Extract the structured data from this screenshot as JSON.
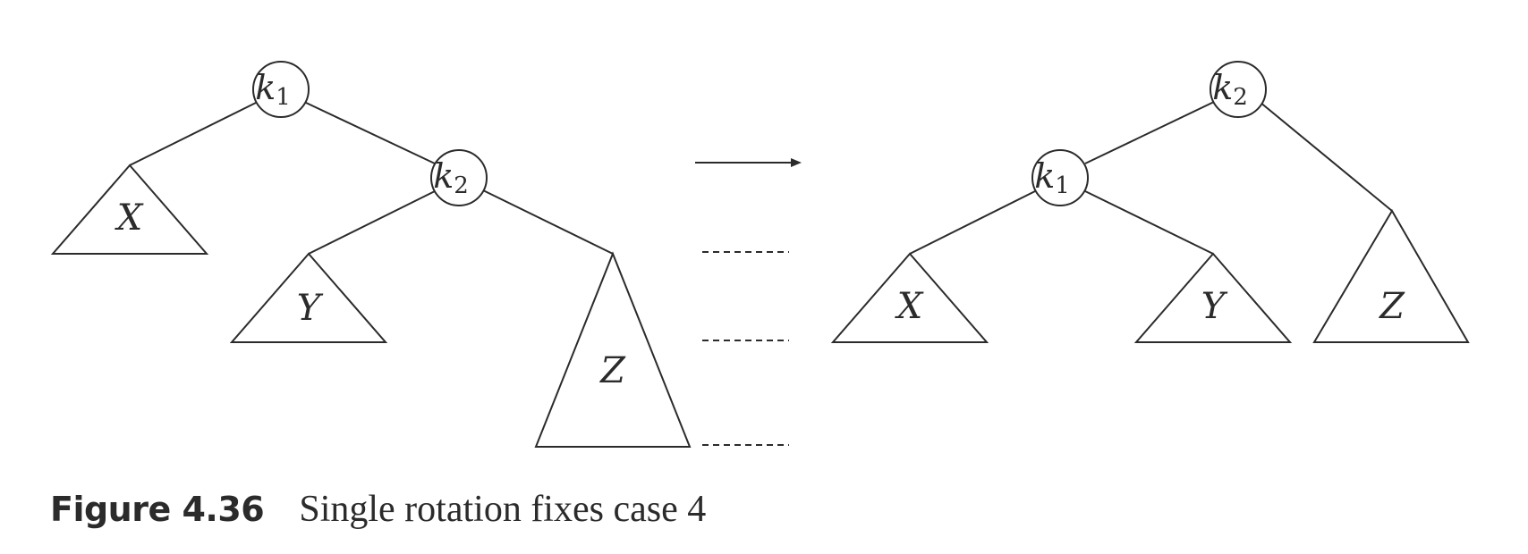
{
  "before": {
    "root": {
      "name": "k",
      "sub": "1"
    },
    "child": {
      "name": "k",
      "sub": "2"
    },
    "subtrees": [
      "X",
      "Y",
      "Z"
    ]
  },
  "after": {
    "root": {
      "name": "k",
      "sub": "2"
    },
    "child": {
      "name": "k",
      "sub": "1"
    },
    "subtrees": [
      "X",
      "Y",
      "Z"
    ]
  },
  "caption": {
    "number": "Figure 4.36",
    "text": "Single rotation fixes case 4"
  }
}
